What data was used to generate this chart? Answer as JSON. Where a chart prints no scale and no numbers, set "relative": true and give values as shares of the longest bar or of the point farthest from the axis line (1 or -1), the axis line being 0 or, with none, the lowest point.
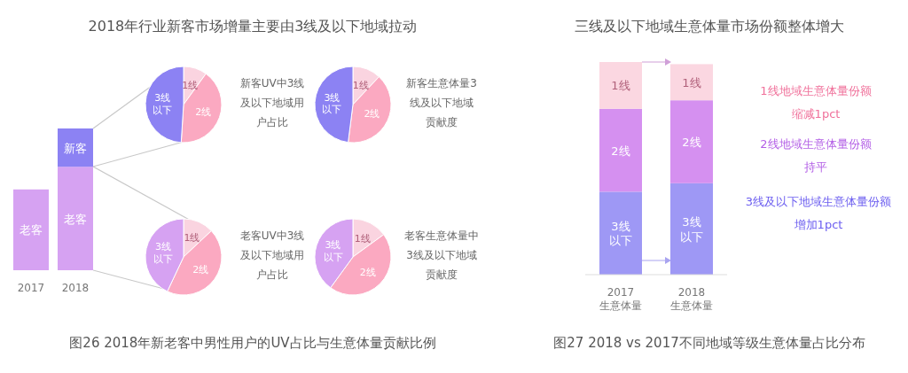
{
  "chart_data": [
    {
      "type": "bar",
      "title": "2018年行业新客市场增量主要由3线及以下地域拉动",
      "annotations": [
        "图26  2018年新老客中男性用户的UV占比与生意体量贡献比例"
      ],
      "relative": true,
      "stacked": true,
      "categories": [
        "2017",
        "2018"
      ],
      "series": [
        {
          "name": "老客",
          "color": "#d6a2f2",
          "values": [
            0.57,
            0.73
          ]
        },
        {
          "name": "新客",
          "color": "#8c82f3",
          "values": [
            null,
            0.27
          ]
        }
      ]
    },
    {
      "type": "pie",
      "title": "新客UV中3线及以下地域用户占比",
      "categories": [
        "1线",
        "2线",
        "3线以下"
      ],
      "values": [
        10,
        41,
        49
      ],
      "colors": [
        "#fad4e0",
        "#fba9c1",
        "#8c82f3"
      ]
    },
    {
      "type": "pie",
      "title": "新客生意体量3线及以下地域贡献度",
      "categories": [
        "1线",
        "2线",
        "3线以下"
      ],
      "values": [
        12,
        40,
        48
      ],
      "colors": [
        "#fad4e0",
        "#fba9c1",
        "#8c82f3"
      ]
    },
    {
      "type": "pie",
      "title": "老客UV中3线及以下地域用户占比",
      "categories": [
        "1线",
        "2线",
        "3线以下"
      ],
      "values": [
        13,
        44,
        43
      ],
      "colors": [
        "#fad4e0",
        "#fba9c1",
        "#d6a2f2"
      ]
    },
    {
      "type": "pie",
      "title": "老客生意体量中3线及以下地域贡献度",
      "categories": [
        "1线",
        "2线",
        "3线以下"
      ],
      "values": [
        15,
        45,
        40
      ],
      "colors": [
        "#fad4e0",
        "#fba9c1",
        "#d6a2f2"
      ]
    },
    {
      "type": "bar",
      "title": "三线及以下地域生意体量市场份额整体增大",
      "annotations": [
        "1线地域生意体量份额缩减1pct",
        "2线地域生意体量份额持平",
        "3线及以下地域生意体量份额增加1pct",
        "图27  2018 vs 2017不同地域等级生意体量占比分布"
      ],
      "relative": true,
      "stacked": true,
      "categories": [
        "2017生意体量",
        "2018生意体量"
      ],
      "series": [
        {
          "name": "3线以下",
          "color": "#9e98f5",
          "values": [
            0.39,
            0.43
          ]
        },
        {
          "name": "2线",
          "color": "#d590f0",
          "values": [
            0.39,
            0.39
          ]
        },
        {
          "name": "1线",
          "color": "#fbd7e1",
          "values": [
            0.22,
            0.17
          ]
        }
      ]
    }
  ]
}
